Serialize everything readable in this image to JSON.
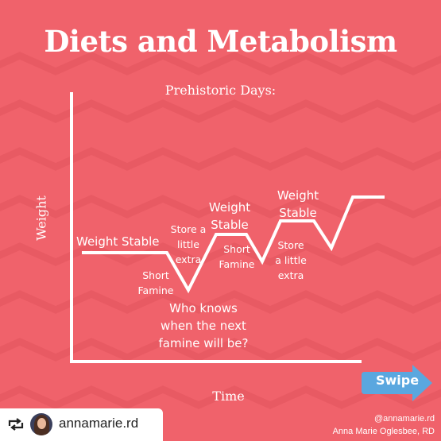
{
  "title": "Diets and Metabolism",
  "subtitle": "Prehistoric Days:",
  "axes": {
    "y_label": "Weight",
    "x_label": "Time"
  },
  "annotations": {
    "weight_stable_1": "Weight Stable",
    "short_famine_1": [
      "Short",
      "Famine"
    ],
    "store_extra_1": [
      "Store a",
      "little",
      "extra"
    ],
    "weight_stable_2": [
      "Weight",
      "Stable"
    ],
    "short_famine_2": [
      "Short",
      "Famine"
    ],
    "weight_stable_3": [
      "Weight",
      "Stable"
    ],
    "store_extra_2": [
      "Store",
      "a little",
      "extra"
    ],
    "question": [
      "Who knows",
      "when the next",
      "famine will be?"
    ]
  },
  "swipe_label": "Swipe",
  "repost": {
    "username": "annamarie.rd"
  },
  "credit": {
    "handle": "@annamarie.rd",
    "name": "Anna Marie Oglesbee, RD"
  },
  "colors": {
    "background": "#f0626b",
    "swipe": "#5aa7df",
    "line": "#ffffff"
  }
}
